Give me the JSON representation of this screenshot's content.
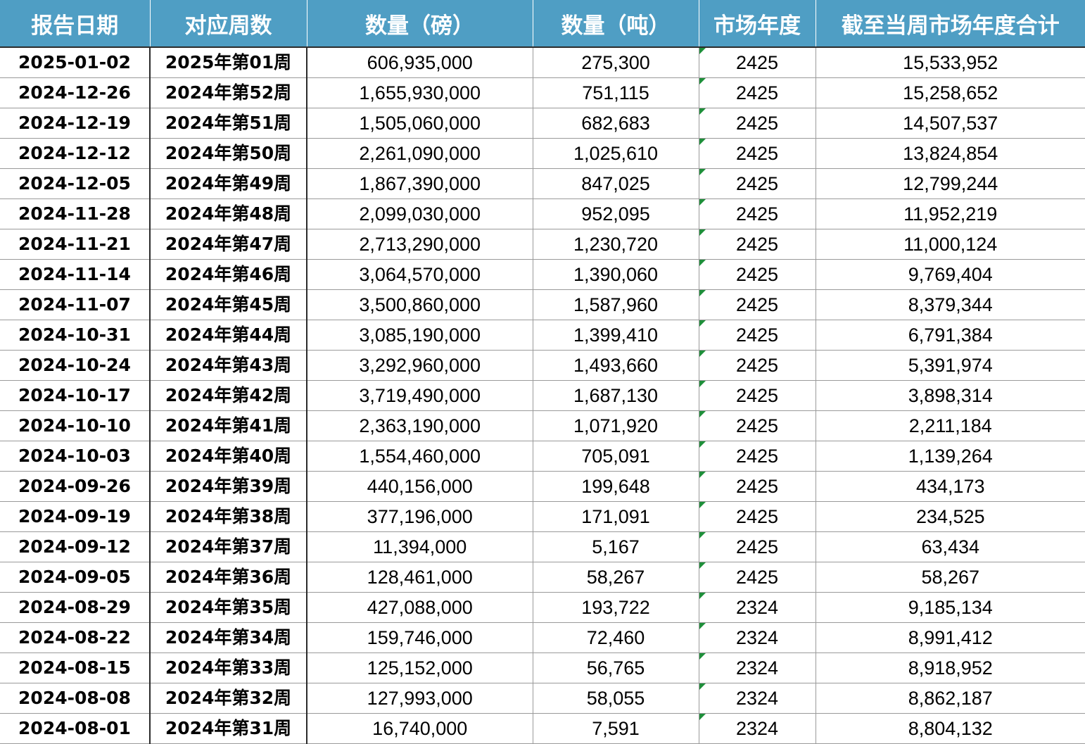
{
  "headers": [
    "报告日期",
    "对应周数",
    "数量（磅）",
    "数量（吨）",
    "市场年度",
    "截至当周市场年度合计"
  ],
  "rows": [
    [
      "2025-01-02",
      "2025年第01周",
      "606,935,000",
      "275,300",
      "2425",
      "15,533,952"
    ],
    [
      "2024-12-26",
      "2024年第52周",
      "1,655,930,000",
      "751,115",
      "2425",
      "15,258,652"
    ],
    [
      "2024-12-19",
      "2024年第51周",
      "1,505,060,000",
      "682,683",
      "2425",
      "14,507,537"
    ],
    [
      "2024-12-12",
      "2024年第50周",
      "2,261,090,000",
      "1,025,610",
      "2425",
      "13,824,854"
    ],
    [
      "2024-12-05",
      "2024年第49周",
      "1,867,390,000",
      "847,025",
      "2425",
      "12,799,244"
    ],
    [
      "2024-11-28",
      "2024年第48周",
      "2,099,030,000",
      "952,095",
      "2425",
      "11,952,219"
    ],
    [
      "2024-11-21",
      "2024年第47周",
      "2,713,290,000",
      "1,230,720",
      "2425",
      "11,000,124"
    ],
    [
      "2024-11-14",
      "2024年第46周",
      "3,064,570,000",
      "1,390,060",
      "2425",
      "9,769,404"
    ],
    [
      "2024-11-07",
      "2024年第45周",
      "3,500,860,000",
      "1,587,960",
      "2425",
      "8,379,344"
    ],
    [
      "2024-10-31",
      "2024年第44周",
      "3,085,190,000",
      "1,399,410",
      "2425",
      "6,791,384"
    ],
    [
      "2024-10-24",
      "2024年第43周",
      "3,292,960,000",
      "1,493,660",
      "2425",
      "5,391,974"
    ],
    [
      "2024-10-17",
      "2024年第42周",
      "3,719,490,000",
      "1,687,130",
      "2425",
      "3,898,314"
    ],
    [
      "2024-10-10",
      "2024年第41周",
      "2,363,190,000",
      "1,071,920",
      "2425",
      "2,211,184"
    ],
    [
      "2024-10-03",
      "2024年第40周",
      "1,554,460,000",
      "705,091",
      "2425",
      "1,139,264"
    ],
    [
      "2024-09-26",
      "2024年第39周",
      "440,156,000",
      "199,648",
      "2425",
      "434,173"
    ],
    [
      "2024-09-19",
      "2024年第38周",
      "377,196,000",
      "171,091",
      "2425",
      "234,525"
    ],
    [
      "2024-09-12",
      "2024年第37周",
      "11,394,000",
      "5,167",
      "2425",
      "63,434"
    ],
    [
      "2024-09-05",
      "2024年第36周",
      "128,461,000",
      "58,267",
      "2425",
      "58,267"
    ],
    [
      "2024-08-29",
      "2024年第35周",
      "427,088,000",
      "193,722",
      "2324",
      "9,185,134"
    ],
    [
      "2024-08-22",
      "2024年第34周",
      "159,746,000",
      "72,460",
      "2324",
      "8,991,412"
    ],
    [
      "2024-08-15",
      "2024年第33周",
      "125,152,000",
      "56,765",
      "2324",
      "8,918,952"
    ],
    [
      "2024-08-08",
      "2024年第32周",
      "127,993,000",
      "58,055",
      "2324",
      "8,862,187"
    ],
    [
      "2024-08-01",
      "2024年第31周",
      "16,740,000",
      "7,591",
      "2324",
      "8,804,132"
    ]
  ],
  "colors": {
    "header_bg": "#4f9ec4",
    "header_text": "#ffffff",
    "cell_marker": "#1e8f3a"
  }
}
